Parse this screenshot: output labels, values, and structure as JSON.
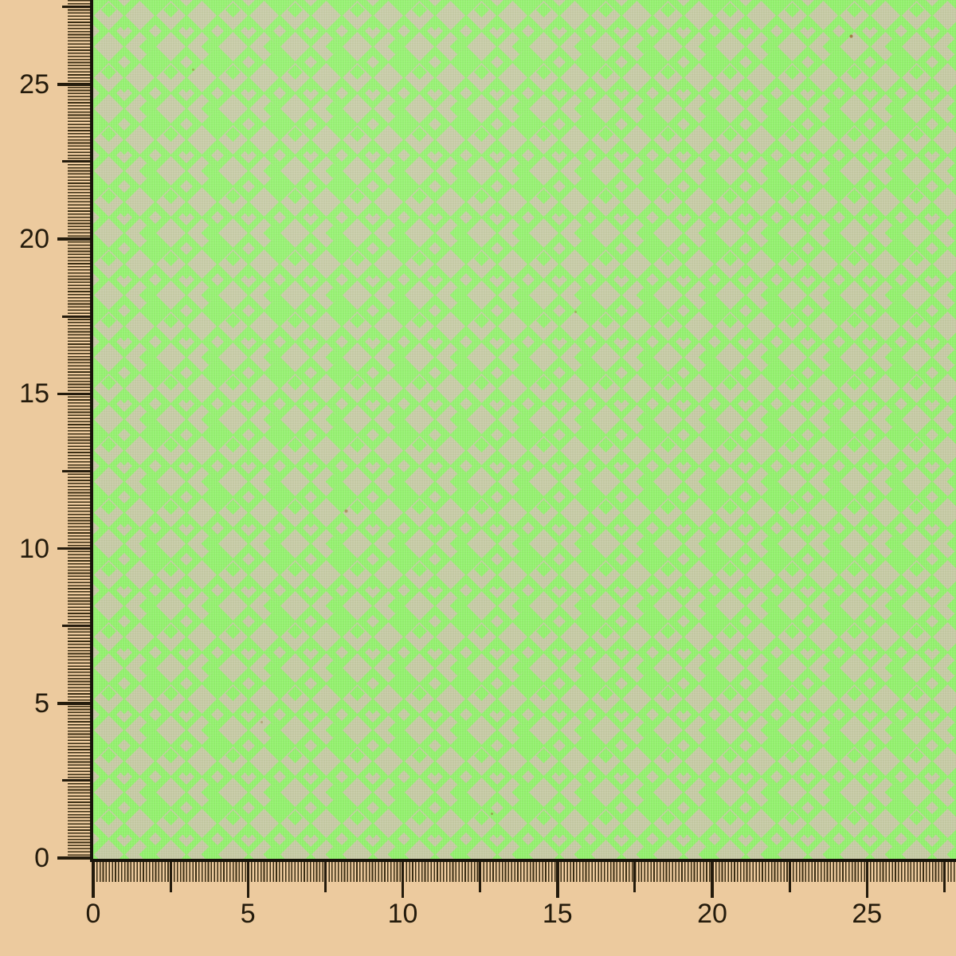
{
  "photo": {
    "description": "Neon green fabric swatch with woven diamond houndstooth pattern, framed by measuring rulers on the left and bottom edges"
  },
  "fabric": {
    "pattern": "houndstooth-diamonds",
    "colors": {
      "green": "#92f16d",
      "greige": "#c6caa5"
    }
  },
  "rulers": {
    "background": "#ecca9e",
    "tick_color": "#241b0c",
    "fine_tick_color": "#3b2e14",
    "border_color": "#171309",
    "vertical": {
      "number_labels": [
        "0",
        "5",
        "10",
        "15",
        "20",
        "25"
      ]
    },
    "horizontal": {
      "number_labels": [
        "0",
        "5",
        "10",
        "15",
        "20",
        "25"
      ]
    },
    "half_tick_positions": [
      2.5,
      7.5,
      12.5,
      17.5,
      22.5,
      27.5
    ]
  }
}
